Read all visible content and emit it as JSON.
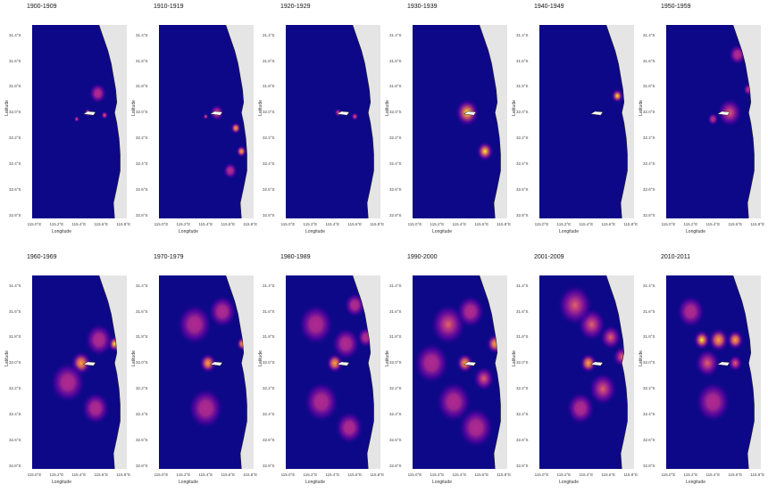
{
  "colors": {
    "ocean": "#0d0887",
    "land": "#e5e5e5",
    "scale": [
      "#0d0887",
      "#6a00a8",
      "#b12a90",
      "#e16462",
      "#fca636",
      "#f0f921"
    ]
  },
  "axes": {
    "xlabel": "Longitude",
    "ylabel": "Latitude",
    "xticks": [
      "115.0°E",
      "115.2°E",
      "115.4°E",
      "115.6°E",
      "115.8°E"
    ],
    "yticks": [
      "31.4°S",
      "31.6°S",
      "31.8°S",
      "32.0°S",
      "32.2°S",
      "32.4°S",
      "32.6°S",
      "32.8°S"
    ]
  },
  "panels": [
    {
      "title": "1900-1909",
      "hotspots": [
        {
          "lon": 115.57,
          "lat": 31.85,
          "r": 0.05,
          "i": 0.25
        },
        {
          "lon": 115.48,
          "lat": 32.0,
          "r": 0.02,
          "i": 0.7
        },
        {
          "lon": 115.63,
          "lat": 32.02,
          "r": 0.02,
          "i": 0.6
        },
        {
          "lon": 115.38,
          "lat": 32.05,
          "r": 0.015,
          "i": 0.5
        }
      ]
    },
    {
      "title": "1910-1919",
      "hotspots": [
        {
          "lon": 115.5,
          "lat": 32.0,
          "r": 0.04,
          "i": 0.6
        },
        {
          "lon": 115.67,
          "lat": 32.12,
          "r": 0.03,
          "i": 0.8
        },
        {
          "lon": 115.72,
          "lat": 32.3,
          "r": 0.03,
          "i": 0.75
        },
        {
          "lon": 115.62,
          "lat": 32.45,
          "r": 0.04,
          "i": 0.35
        },
        {
          "lon": 115.4,
          "lat": 32.03,
          "r": 0.015,
          "i": 0.5
        }
      ]
    },
    {
      "title": "1920-1929",
      "hotspots": [
        {
          "lon": 115.45,
          "lat": 32.0,
          "r": 0.02,
          "i": 0.5
        },
        {
          "lon": 115.6,
          "lat": 32.03,
          "r": 0.02,
          "i": 0.55
        }
      ]
    },
    {
      "title": "1930-1939",
      "hotspots": [
        {
          "lon": 115.47,
          "lat": 32.0,
          "r": 0.07,
          "i": 1.0
        },
        {
          "lon": 115.63,
          "lat": 32.3,
          "r": 0.05,
          "i": 0.9
        }
      ]
    },
    {
      "title": "1940-1949",
      "hotspots": [
        {
          "lon": 115.68,
          "lat": 31.87,
          "r": 0.035,
          "i": 1.0
        }
      ]
    },
    {
      "title": "1950-1959",
      "hotspots": [
        {
          "lon": 115.55,
          "lat": 32.0,
          "r": 0.07,
          "i": 0.55
        },
        {
          "lon": 115.72,
          "lat": 31.82,
          "r": 0.03,
          "i": 0.35
        },
        {
          "lon": 115.4,
          "lat": 32.05,
          "r": 0.03,
          "i": 0.3
        },
        {
          "lon": 115.62,
          "lat": 31.55,
          "r": 0.05,
          "i": 0.2
        }
      ]
    },
    {
      "title": "1960-1969",
      "hotspots": [
        {
          "lon": 115.72,
          "lat": 31.85,
          "r": 0.04,
          "i": 0.95
        },
        {
          "lon": 115.42,
          "lat": 32.0,
          "r": 0.06,
          "i": 0.7
        },
        {
          "lon": 115.58,
          "lat": 31.82,
          "r": 0.08,
          "i": 0.3
        },
        {
          "lon": 115.3,
          "lat": 32.15,
          "r": 0.1,
          "i": 0.25
        },
        {
          "lon": 115.55,
          "lat": 32.35,
          "r": 0.08,
          "i": 0.2
        }
      ]
    },
    {
      "title": "1970-1979",
      "hotspots": [
        {
          "lon": 115.42,
          "lat": 32.0,
          "r": 0.05,
          "i": 0.75
        },
        {
          "lon": 115.73,
          "lat": 31.85,
          "r": 0.035,
          "i": 0.7
        },
        {
          "lon": 115.3,
          "lat": 31.7,
          "r": 0.1,
          "i": 0.2
        },
        {
          "lon": 115.55,
          "lat": 31.6,
          "r": 0.08,
          "i": 0.18
        },
        {
          "lon": 115.4,
          "lat": 32.35,
          "r": 0.1,
          "i": 0.2
        }
      ]
    },
    {
      "title": "1980-1989",
      "hotspots": [
        {
          "lon": 115.42,
          "lat": 32.0,
          "r": 0.05,
          "i": 0.75
        },
        {
          "lon": 115.52,
          "lat": 31.85,
          "r": 0.08,
          "i": 0.35
        },
        {
          "lon": 115.7,
          "lat": 31.8,
          "r": 0.05,
          "i": 0.4
        },
        {
          "lon": 115.25,
          "lat": 31.7,
          "r": 0.1,
          "i": 0.25
        },
        {
          "lon": 115.6,
          "lat": 31.55,
          "r": 0.06,
          "i": 0.3
        },
        {
          "lon": 115.3,
          "lat": 32.3,
          "r": 0.1,
          "i": 0.25
        },
        {
          "lon": 115.55,
          "lat": 32.5,
          "r": 0.08,
          "i": 0.2
        }
      ]
    },
    {
      "title": "1990-2000",
      "hotspots": [
        {
          "lon": 115.72,
          "lat": 31.85,
          "r": 0.05,
          "i": 0.85
        },
        {
          "lon": 115.45,
          "lat": 32.0,
          "r": 0.05,
          "i": 0.7
        },
        {
          "lon": 115.3,
          "lat": 31.7,
          "r": 0.1,
          "i": 0.45
        },
        {
          "lon": 115.5,
          "lat": 31.6,
          "r": 0.08,
          "i": 0.4
        },
        {
          "lon": 115.62,
          "lat": 32.12,
          "r": 0.06,
          "i": 0.55
        },
        {
          "lon": 115.35,
          "lat": 32.3,
          "r": 0.1,
          "i": 0.35
        },
        {
          "lon": 115.55,
          "lat": 32.5,
          "r": 0.1,
          "i": 0.3
        },
        {
          "lon": 115.15,
          "lat": 32.0,
          "r": 0.1,
          "i": 0.3
        }
      ]
    },
    {
      "title": "2001-2009",
      "hotspots": [
        {
          "lon": 115.42,
          "lat": 32.0,
          "r": 0.05,
          "i": 0.75
        },
        {
          "lon": 115.62,
          "lat": 31.8,
          "r": 0.06,
          "i": 0.6
        },
        {
          "lon": 115.45,
          "lat": 31.7,
          "r": 0.08,
          "i": 0.55
        },
        {
          "lon": 115.3,
          "lat": 31.55,
          "r": 0.1,
          "i": 0.5
        },
        {
          "lon": 115.72,
          "lat": 31.95,
          "r": 0.05,
          "i": 0.6
        },
        {
          "lon": 115.55,
          "lat": 32.2,
          "r": 0.08,
          "i": 0.45
        },
        {
          "lon": 115.35,
          "lat": 32.35,
          "r": 0.08,
          "i": 0.35
        }
      ]
    },
    {
      "title": "2010-2011",
      "hotspots": [
        {
          "lon": 115.3,
          "lat": 31.82,
          "r": 0.05,
          "i": 0.9
        },
        {
          "lon": 115.45,
          "lat": 31.82,
          "r": 0.06,
          "i": 0.8
        },
        {
          "lon": 115.6,
          "lat": 31.82,
          "r": 0.05,
          "i": 0.7
        },
        {
          "lon": 115.35,
          "lat": 32.0,
          "r": 0.07,
          "i": 0.45
        },
        {
          "lon": 115.6,
          "lat": 32.0,
          "r": 0.04,
          "i": 0.6
        },
        {
          "lon": 115.2,
          "lat": 31.6,
          "r": 0.08,
          "i": 0.3
        },
        {
          "lon": 115.4,
          "lat": 32.3,
          "r": 0.1,
          "i": 0.2
        }
      ]
    }
  ]
}
